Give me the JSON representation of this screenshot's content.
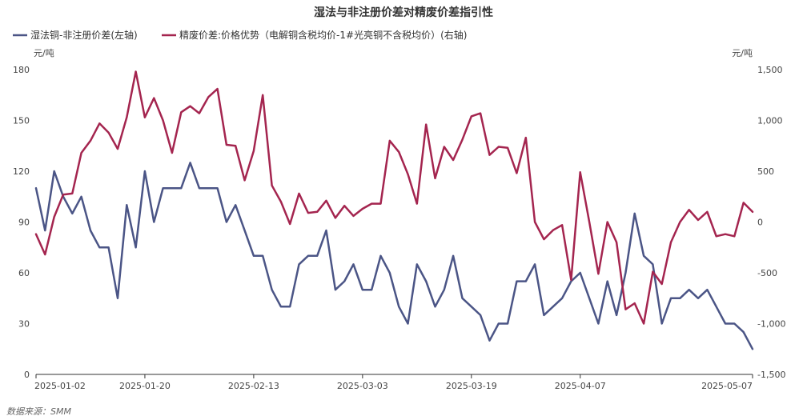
{
  "chart_data": {
    "type": "line",
    "title": "湿法与非注册价差对精废价差指引性",
    "source": "数据来源：SMM",
    "left_axis": {
      "unit": "元/吨",
      "ylim": [
        0,
        180
      ],
      "ticks": [
        "0",
        "30",
        "60",
        "90",
        "120",
        "150",
        "180"
      ]
    },
    "right_axis": {
      "unit": "元/吨",
      "ylim": [
        -1500,
        1500
      ],
      "ticks": [
        "-1,500",
        "-1,000",
        "-500",
        "0",
        "500",
        "1,000",
        "1,500"
      ]
    },
    "x_tick_labels": [
      "2025-01-02",
      "2025-01-20",
      "2025-02-13",
      "2025-03-03",
      "2025-03-19",
      "2025-04-07",
      "2025-05-07"
    ],
    "x_tick_index": [
      0,
      12,
      24,
      36,
      48,
      60,
      79
    ],
    "legend_position": "top-left",
    "grid": false,
    "series": [
      {
        "name": "湿法铜-非注册价差(左轴)",
        "axis": "left",
        "color": "#4b5586",
        "values": [
          110,
          85,
          120,
          105,
          95,
          105,
          85,
          75,
          75,
          45,
          100,
          75,
          120,
          90,
          110,
          110,
          110,
          125,
          110,
          110,
          110,
          90,
          100,
          85,
          70,
          70,
          50,
          40,
          40,
          65,
          70,
          70,
          85,
          50,
          55,
          65,
          50,
          50,
          70,
          60,
          40,
          30,
          65,
          55,
          40,
          50,
          70,
          45,
          40,
          35,
          20,
          30,
          30,
          55,
          55,
          65,
          35,
          40,
          45,
          55,
          60,
          45,
          30,
          55,
          35,
          60,
          95,
          70,
          65,
          30,
          45,
          45,
          50,
          45,
          50,
          40,
          30,
          30,
          25,
          15
        ]
      },
      {
        "name": "精废价差:价格优势（电解铜含税均价-1#光亮铜不含税均价）(右轴)",
        "axis": "right",
        "color": "#a4254f",
        "values": [
          -120,
          -320,
          50,
          270,
          280,
          680,
          800,
          970,
          880,
          720,
          1030,
          1480,
          1030,
          1220,
          1000,
          680,
          1080,
          1140,
          1070,
          1230,
          1310,
          760,
          750,
          410,
          700,
          1250,
          360,
          200,
          -20,
          280,
          90,
          100,
          210,
          40,
          160,
          60,
          130,
          180,
          180,
          800,
          690,
          470,
          180,
          960,
          430,
          740,
          610,
          810,
          1040,
          1070,
          660,
          740,
          730,
          480,
          830,
          0,
          -170,
          -80,
          -30,
          -570,
          490,
          0,
          -510,
          0,
          -200,
          -860,
          -800,
          -1000,
          -490,
          -610,
          -200,
          0,
          120,
          20,
          100,
          -140,
          -120,
          -140,
          190,
          100
        ]
      }
    ]
  }
}
